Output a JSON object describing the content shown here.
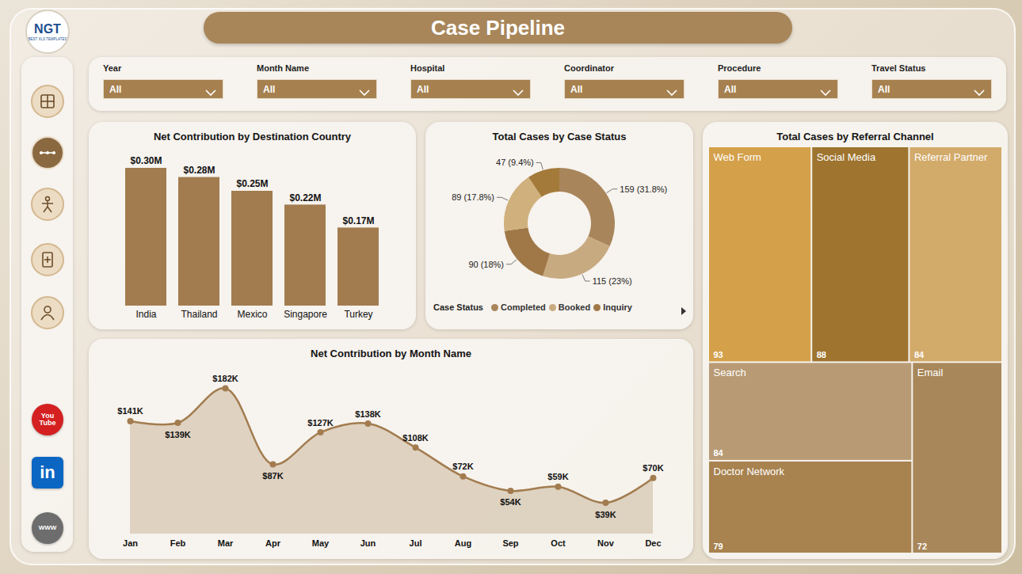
{
  "header": {
    "title": "Case Pipeline",
    "logo": "NGT",
    "logo_caption": "BEST XLS TEMPLATES"
  },
  "sidebar": {
    "links": [
      "You Tube",
      "in",
      "WWW"
    ]
  },
  "filters": [
    {
      "label": "Year",
      "value": "All"
    },
    {
      "label": "Month Name",
      "value": "All"
    },
    {
      "label": "Hospital",
      "value": "All"
    },
    {
      "label": "Coordinator",
      "value": "All"
    },
    {
      "label": "Procedure",
      "value": "All"
    },
    {
      "label": "Travel Status",
      "value": "All"
    }
  ],
  "chart_data": [
    {
      "type": "bar",
      "title": "Net Contribution by Destination Country",
      "categories": [
        "India",
        "Thailand",
        "Mexico",
        "Singapore",
        "Turkey"
      ],
      "values": [
        0.3,
        0.28,
        0.25,
        0.22,
        0.17
      ],
      "value_labels": [
        "$0.30M",
        "$0.28M",
        "$0.25M",
        "$0.22M",
        "$0.17M"
      ],
      "color": "#a27c4f",
      "data_labels": true,
      "tick_labels": "x"
    },
    {
      "type": "donut",
      "title": "Total Cases by Case Status",
      "categories": [
        "Completed",
        "Booked",
        "Inquiry",
        null,
        null
      ],
      "values": [
        159,
        115,
        90,
        89,
        47
      ],
      "value_labels": [
        "159 (31.8%)",
        "115 (23%)",
        "90 (18%)",
        "89 (17.8%)",
        "47 (9.4%)"
      ],
      "colors": [
        "#a8855b",
        "#c8aa80",
        "#a07848",
        "#d0b07c",
        "#a47a3a"
      ],
      "legend": "bottom",
      "legend_title": "Case Status",
      "data_labels": true
    },
    {
      "type": "area",
      "title": "Net Contribution by Month Name",
      "categories": [
        "Jan",
        "Feb",
        "Mar",
        "Apr",
        "May",
        "Jun",
        "Jul",
        "Aug",
        "Sep",
        "Oct",
        "Nov",
        "Dec"
      ],
      "values": [
        141,
        139,
        182,
        87,
        127,
        138,
        108,
        72,
        54,
        59,
        39,
        70
      ],
      "value_labels": [
        "$141K",
        "$139K",
        "$182K",
        "$87K",
        "$127K",
        "$138K",
        "$108K",
        "$72K",
        "$54K",
        "$59K",
        "$39K",
        "$70K"
      ],
      "color": "#a27c4f",
      "marker": "circle",
      "data_labels": true,
      "tick_labels": "x"
    },
    {
      "type": "treemap",
      "title": "Total Cases by Referral Channel",
      "categories": [
        "Web Form",
        "Social Media",
        "Referral Partner",
        "Search",
        "Doctor Network",
        "Email"
      ],
      "values": [
        93,
        88,
        84,
        84,
        79,
        72
      ],
      "colors": [
        "#d4a04a",
        "#9e742f",
        "#d2aa6a",
        "#b89b75",
        "#a8824f",
        "#a8875a"
      ],
      "data_labels": true
    }
  ]
}
